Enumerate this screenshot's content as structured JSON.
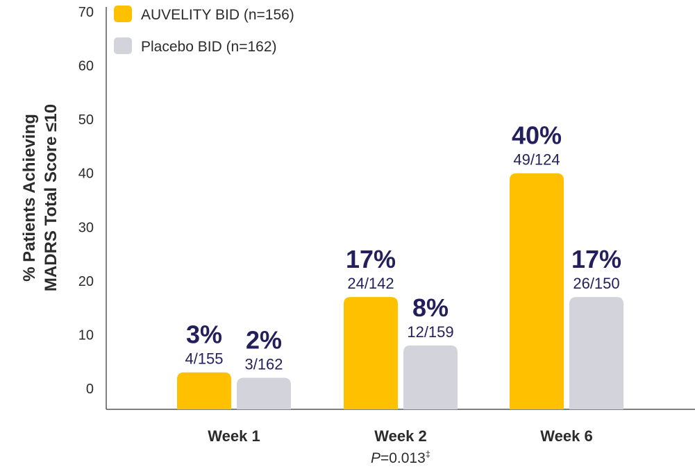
{
  "colors": {
    "auvelity": "#FFC000",
    "placebo": "#D3D3DC",
    "label": "#231F5C",
    "axis": "#555555"
  },
  "chart_data": {
    "type": "bar",
    "ylabel_lines": [
      "% Patients Achieving",
      "MADRS Total Score ≤10"
    ],
    "ylim": [
      0,
      70
    ],
    "yticks": [
      0,
      10,
      20,
      30,
      40,
      50,
      60,
      70
    ],
    "grid": false,
    "legend_position": "top-left",
    "categories": [
      "Week 1",
      "Week 2",
      "Week 6"
    ],
    "category_notes": [
      {
        "category": "Week 1",
        "text": ""
      },
      {
        "category": "Week 2",
        "p_symbol": "P",
        "text": "=0.013",
        "sup": "‡"
      },
      {
        "category": "Week 6",
        "text": ""
      }
    ],
    "series": [
      {
        "name": "AUVELITY BID (n=156)",
        "color": "#FFC000",
        "values": [
          3,
          17,
          40
        ],
        "percent_labels": [
          "3%",
          "17%",
          "40%"
        ],
        "fraction_labels": [
          "4/155",
          "24/142",
          "49/124"
        ]
      },
      {
        "name": "Placebo BID (n=162)",
        "color": "#D3D3DC",
        "values": [
          2,
          8,
          17
        ],
        "percent_labels": [
          "2%",
          "8%",
          "17%"
        ],
        "fraction_labels": [
          "3/162",
          "12/159",
          "26/150"
        ]
      }
    ]
  }
}
